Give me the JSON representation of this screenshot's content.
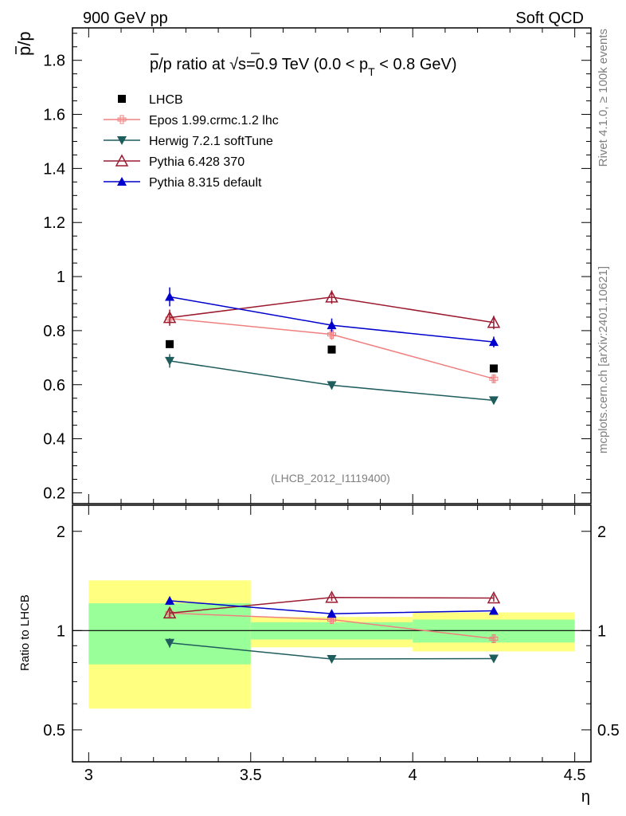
{
  "header": {
    "left": "900 GeV pp",
    "right": "Soft QCD"
  },
  "side": {
    "rivet": "Rivet 4.1.0, ≥ 100k events",
    "mcplots": "mcplots.cern.ch [arXiv:2401.10621]"
  },
  "chart_data": {
    "type": "line",
    "title_parts": {
      "pre": "p",
      "mid": "/p ratio at ",
      "sqrt": "√",
      "s": "s",
      "post1": "=0.9 TeV (0.0 < p",
      "sub": "T",
      "post2": " < 0.8 GeV)"
    },
    "ylabel_top": "p̅/p",
    "ylabel_top_parts": {
      "bar": "p",
      "rest": "/p"
    },
    "ylabel_ratio": "Ratio to LHCB",
    "xlabel": "η",
    "analysis_id": "(LHCB_2012_I1119400)",
    "x": [
      3.25,
      3.75,
      4.25
    ],
    "xlim": [
      2.95,
      4.55
    ],
    "ylim_main": [
      0.16,
      1.92
    ],
    "ylim_ratio_log": [
      0.4,
      2.4
    ],
    "x_ticks": [
      "3",
      "3.5",
      "4",
      "4.5"
    ],
    "x_tick_values": [
      3,
      3.5,
      4,
      4.5
    ],
    "y_ticks_main": [
      "0.2",
      "0.4",
      "0.6",
      "0.8",
      "1",
      "1.2",
      "1.4",
      "1.6",
      "1.8"
    ],
    "y_tick_values_main": [
      0.2,
      0.4,
      0.6,
      0.8,
      1.0,
      1.2,
      1.4,
      1.6,
      1.8
    ],
    "y_ticks_ratio": [
      "0.5",
      "1",
      "2"
    ],
    "y_tick_values_ratio": [
      0.5,
      1,
      2
    ],
    "data_series": {
      "name": "LHCB",
      "values": [
        0.75,
        0.73,
        0.66
      ],
      "color": "#000000"
    },
    "series": [
      {
        "name": "Epos 1.99.crmc.1.2 lhc",
        "color": "#f08080",
        "marker": "open-cross",
        "values": [
          0.845,
          0.786,
          0.622
        ],
        "errors": [
          0.015,
          0.02,
          0.015
        ],
        "ratio": [
          1.13,
          1.08,
          0.945
        ],
        "ratio_errors": [
          0.02,
          0.025,
          0.025
        ]
      },
      {
        "name": "Herwig 7.2.1 softTune",
        "color": "#1f5c5c",
        "marker": "triangle-down",
        "values": [
          0.688,
          0.598,
          0.542
        ],
        "errors": [
          0.025,
          0.015,
          0.012
        ],
        "ratio": [
          0.918,
          0.82,
          0.822
        ],
        "ratio_errors": [
          0.03,
          0.02,
          0.02
        ]
      },
      {
        "name": "Pythia 6.428 370",
        "color": "#9b1b30",
        "marker": "open-triangle",
        "values": [
          0.848,
          0.924,
          0.83
        ],
        "errors": [
          0.03,
          0.025,
          0.025
        ],
        "ratio": [
          1.13,
          1.26,
          1.255
        ],
        "ratio_errors": [
          0.03,
          0.03,
          0.03
        ]
      },
      {
        "name": "Pythia 8.315 default",
        "color": "#0000cc",
        "marker": "triangle",
        "values": [
          0.925,
          0.82,
          0.758
        ],
        "errors": [
          0.035,
          0.025,
          0.02
        ],
        "ratio": [
          1.232,
          1.125,
          1.148
        ],
        "ratio_errors": [
          0.035,
          0.025,
          0.02
        ]
      }
    ],
    "uncertainty_bands": [
      {
        "x": [
          3.0,
          3.5
        ],
        "inner": [
          0.79,
          1.21
        ],
        "outer": [
          0.58,
          1.42
        ]
      },
      {
        "x": [
          3.5,
          4.0
        ],
        "inner": [
          0.94,
          1.06
        ],
        "outer": [
          0.89,
          1.1
        ]
      },
      {
        "x": [
          4.0,
          4.5
        ],
        "inner": [
          0.92,
          1.08
        ],
        "outer": [
          0.865,
          1.135
        ]
      }
    ]
  }
}
